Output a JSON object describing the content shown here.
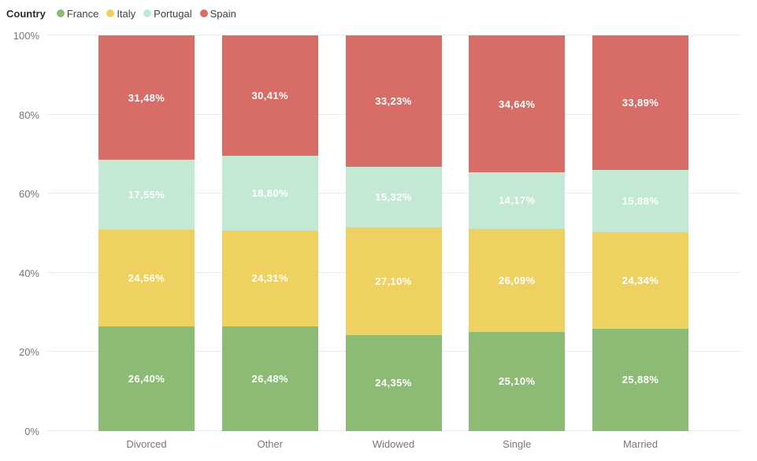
{
  "legend": {
    "title": "Country",
    "items": [
      {
        "label": "France",
        "color": "#8bbb74"
      },
      {
        "label": "Italy",
        "color": "#eed161"
      },
      {
        "label": "Portugal",
        "color": "#c3e9d4"
      },
      {
        "label": "Spain",
        "color": "#d76d66"
      }
    ]
  },
  "y_axis": {
    "ticks": [
      "0%",
      "20%",
      "40%",
      "60%",
      "80%",
      "100%"
    ]
  },
  "chart_data": {
    "type": "bar",
    "variant": "100%-stacked-column",
    "title": "",
    "xlabel": "",
    "ylabel": "",
    "ylim": [
      0,
      100
    ],
    "grid": true,
    "legend_position": "top-left",
    "legend_title": "Country",
    "categories": [
      "Divorced",
      "Other",
      "Widowed",
      "Single",
      "Married"
    ],
    "series": [
      {
        "name": "France",
        "color": "#8bbb74",
        "values": [
          26.4,
          26.48,
          24.35,
          25.1,
          25.88
        ],
        "labels": [
          "26,40%",
          "26,48%",
          "24,35%",
          "25,10%",
          "25,88%"
        ]
      },
      {
        "name": "Italy",
        "color": "#eed161",
        "values": [
          24.56,
          24.31,
          27.1,
          26.09,
          24.34
        ],
        "labels": [
          "24,56%",
          "24,31%",
          "27,10%",
          "26,09%",
          "24,34%"
        ]
      },
      {
        "name": "Portugal",
        "color": "#c3e9d4",
        "values": [
          17.55,
          18.8,
          15.32,
          14.17,
          15.88
        ],
        "labels": [
          "17,55%",
          "18,80%",
          "15,32%",
          "14,17%",
          "15,88%"
        ]
      },
      {
        "name": "Spain",
        "color": "#d76d66",
        "values": [
          31.48,
          30.41,
          33.23,
          34.64,
          33.89
        ],
        "labels": [
          "31,48%",
          "30,41%",
          "33,23%",
          "34,64%",
          "33,89%"
        ]
      }
    ]
  }
}
